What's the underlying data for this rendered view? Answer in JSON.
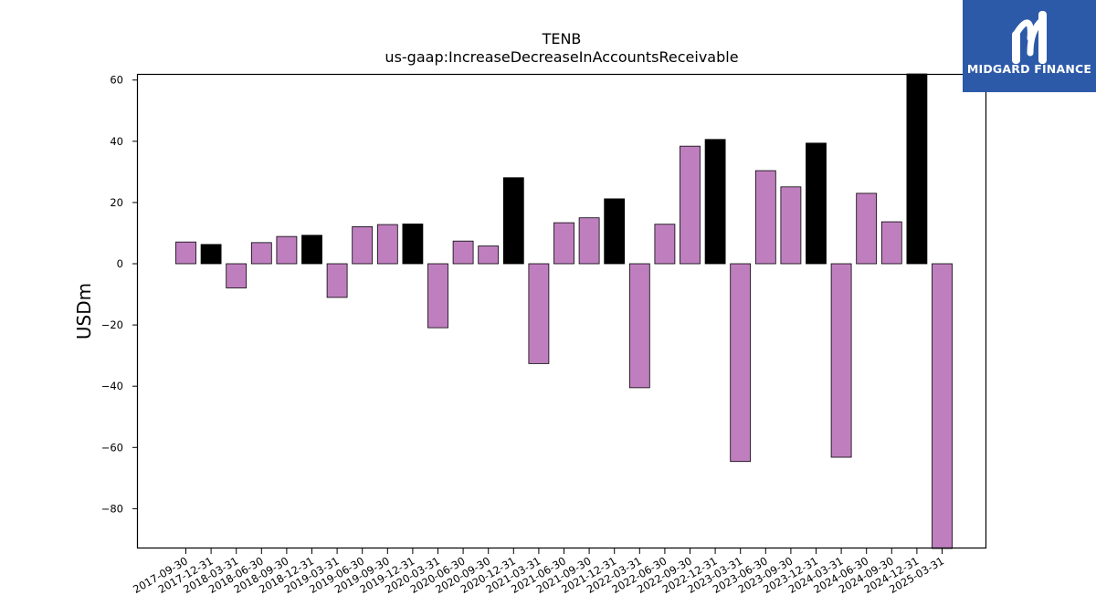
{
  "brand": {
    "name": "MIDGARD FINANCE",
    "background": "#2d5aa8"
  },
  "chart_data": {
    "type": "bar",
    "title": "TENB",
    "subtitle": "us-gaap:IncreaseDecreaseInAccountsReceivable",
    "xlabel": "",
    "ylabel": "USDm",
    "ylim": [
      -93,
      62
    ],
    "yticks": [
      60,
      40,
      20,
      0,
      -20,
      -40,
      -60,
      -80
    ],
    "ytick_labels": [
      "60",
      "40",
      "20",
      "0",
      "−20",
      "−40",
      "−60",
      "−80"
    ],
    "grid": false,
    "colors": {
      "quarter": "#bf7fbf",
      "year_end": "#000000",
      "edge": "#000000"
    },
    "categories": [
      "2017-09-30",
      "2017-12-31",
      "2018-03-31",
      "2018-06-30",
      "2018-09-30",
      "2018-12-31",
      "2019-03-31",
      "2019-06-30",
      "2019-09-30",
      "2019-12-31",
      "2020-03-31",
      "2020-06-30",
      "2020-09-30",
      "2020-12-31",
      "2021-03-31",
      "2021-06-30",
      "2021-09-30",
      "2021-12-31",
      "2022-03-31",
      "2022-06-30",
      "2022-09-30",
      "2022-12-31",
      "2023-03-31",
      "2023-06-30",
      "2023-09-30",
      "2023-12-31",
      "2024-03-31",
      "2024-06-30",
      "2024-09-30",
      "2024-12-31",
      "2025-03-31"
    ],
    "values": [
      7.1,
      6.3,
      -7.9,
      6.9,
      8.9,
      9.3,
      -11.0,
      12.1,
      12.8,
      13.0,
      -20.9,
      7.4,
      5.8,
      28.1,
      -32.6,
      13.4,
      15.0,
      21.2,
      -40.5,
      12.9,
      38.4,
      40.6,
      -64.6,
      30.4,
      25.1,
      39.4,
      -63.2,
      23.0,
      13.7,
      62.0,
      -93.0
    ],
    "highlight": [
      false,
      true,
      false,
      false,
      false,
      true,
      false,
      false,
      false,
      true,
      false,
      false,
      false,
      true,
      false,
      false,
      false,
      true,
      false,
      false,
      false,
      true,
      false,
      false,
      false,
      true,
      false,
      false,
      false,
      true,
      false
    ]
  }
}
